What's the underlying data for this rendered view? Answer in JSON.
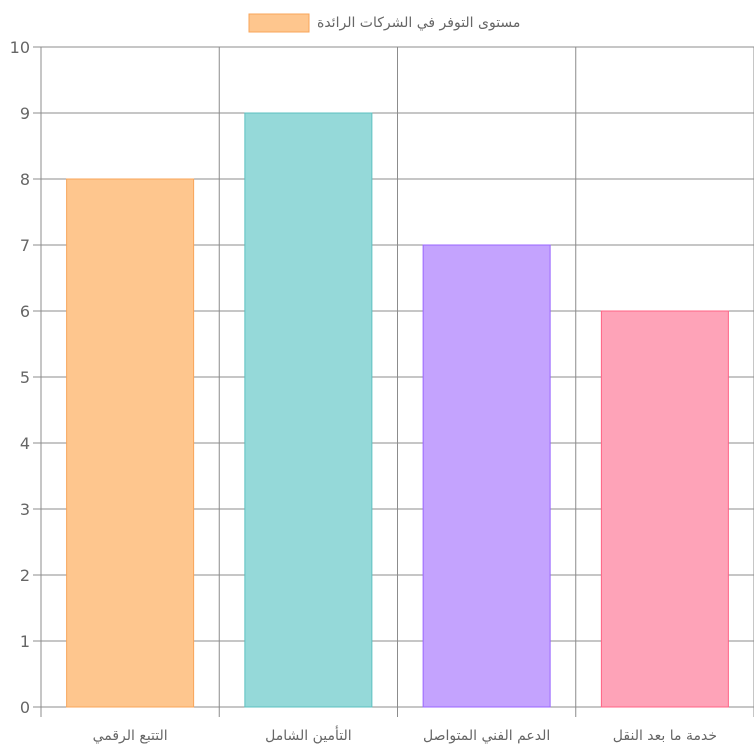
{
  "chart_data": {
    "type": "bar",
    "categories": [
      "التتبع الرقمي",
      "التأمين الشامل",
      "الدعم الفني المتواصل",
      "خدمة ما بعد النقل"
    ],
    "series": [
      {
        "name": "مستوى التوفر في الشركات الرائدة",
        "values": [
          8,
          9,
          7,
          6
        ]
      }
    ],
    "ylim": [
      0,
      10
    ],
    "yticks": [
      "0",
      "1",
      "2",
      "3",
      "4",
      "5",
      "6",
      "7",
      "8",
      "9",
      "10"
    ],
    "grid": true,
    "legend_position": "top",
    "colors": {
      "fills": [
        "#fec68e",
        "#95d9d9",
        "#c4a3fe",
        "#fea3b8"
      ],
      "strokes": [
        "#f8a55a",
        "#5cc0c0",
        "#9966ff",
        "#ff6384"
      ],
      "legend_fill": "#fec68e",
      "legend_stroke": "#f8a55a",
      "grid": "#8c8c8c",
      "text": "#666666"
    }
  }
}
